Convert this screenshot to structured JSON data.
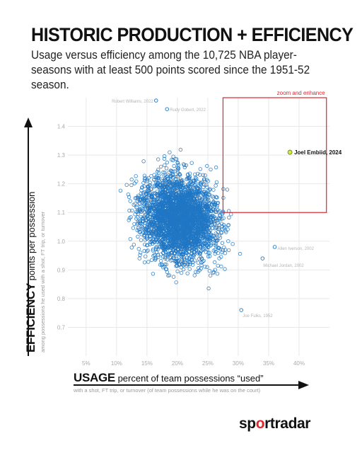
{
  "header": {
    "title": "HISTORIC PRODUCTION + EFFICIENCY",
    "subtitle": "Usage versus efficiency among the 10,725 NBA player-seasons with at least 500 points scored since the 1951-52 season."
  },
  "x_axis": {
    "label_big": "USAGE",
    "label_rest": " percent of team possessions “used”",
    "note": "with a shot, FT trip, or turnover (of team possessions while he was on the court)"
  },
  "y_axis": {
    "label_big": "EFFICIENCY",
    "label_rest": " points per possession",
    "note": "among possessions he used with a shot, FT trip, or turnover"
  },
  "brand": {
    "part1": "sp",
    "part2": "o",
    "part3": "rtradar"
  },
  "colors": {
    "point": "#1f77c4",
    "highlight": "#d7e84a",
    "zoom_box": "#e0262e",
    "grid": "#e8e8e8",
    "tick_text": "#aaaaaa",
    "player_label": "#b5b5b5"
  },
  "chart_data": {
    "type": "scatter",
    "xlim": [
      2,
      45
    ],
    "ylim": [
      0.6,
      1.5
    ],
    "x_ticks": [
      5,
      10,
      15,
      20,
      25,
      30,
      35,
      40
    ],
    "x_tick_labels": [
      "5%",
      "10%",
      "15%",
      "20%",
      "25%",
      "30%",
      "35%",
      "40%"
    ],
    "y_ticks": [
      0.7,
      0.8,
      0.9,
      1.0,
      1.1,
      1.2,
      1.3,
      1.4
    ],
    "y_tick_labels": [
      "0.7",
      "0.8",
      "0.9",
      "1.0",
      "1.1",
      "1.2",
      "1.3",
      "1.4"
    ],
    "grid": true,
    "cloud": {
      "count": 10725,
      "x_center": 20.5,
      "x_spread": 4.4,
      "y_center": 1.08,
      "y_spread": 0.105
    },
    "labeled_points": [
      {
        "name": "Robert Williams, 2022",
        "x": 16.5,
        "y": 1.49
      },
      {
        "name": "Rudy Gobert, 2022",
        "x": 18.3,
        "y": 1.46
      },
      {
        "name": "Allen Iverson, 2002",
        "x": 36.0,
        "y": 0.98
      },
      {
        "name": "Michael Jordan, 2002",
        "x": 34.0,
        "y": 0.94
      },
      {
        "name": "Joe Fulks, 1952",
        "x": 30.5,
        "y": 0.76
      }
    ],
    "highlight": {
      "name": "Joel Embiid, 2024",
      "x": 38.5,
      "y": 1.31
    },
    "zoom_box": {
      "label": "zoom and enhance",
      "x": [
        27.5,
        44.5
      ],
      "y": [
        1.1,
        1.5
      ]
    }
  }
}
